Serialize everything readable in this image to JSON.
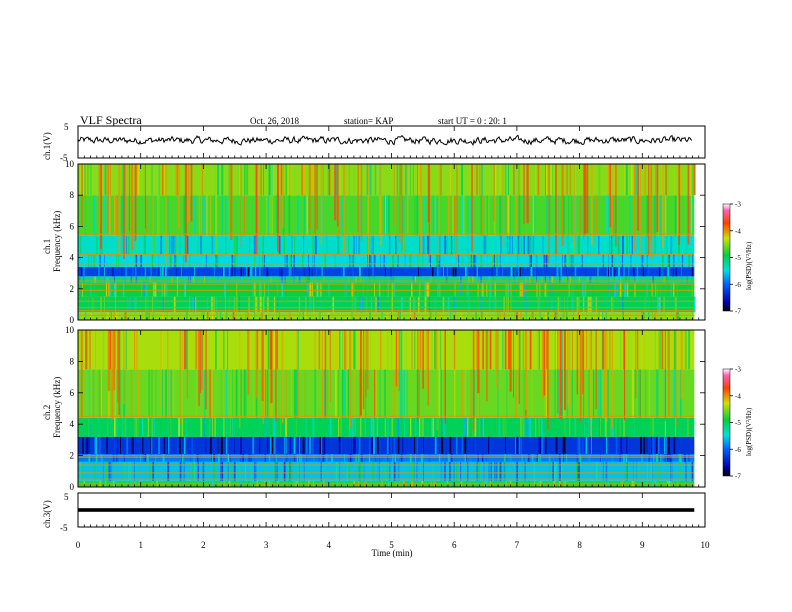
{
  "header": {
    "title": "VLF Spectra",
    "date": "Oct. 26, 2018",
    "station": "station= KAP",
    "start": "start  UT =  0 : 20: 1"
  },
  "chart_data": [
    {
      "type": "line",
      "panel": "ch1-waveform",
      "ylabel": "ch.1(V)",
      "ylim": [
        -5,
        5
      ],
      "yticks": [
        "5",
        "-5"
      ],
      "xlim": [
        0,
        10
      ],
      "series": [
        {
          "name": "",
          "shape": "noisy",
          "mean": 0.5,
          "amplitude": 2.0
        }
      ]
    },
    {
      "type": "heatmap",
      "panel": "ch1-spectrogram",
      "ylabel_top": "ch.1",
      "ylabel_bottom": "Frequency (kHz)",
      "ylim": [
        0,
        10
      ],
      "yticks": [
        "0",
        "2",
        "4",
        "6",
        "8",
        "10"
      ],
      "xlim": [
        0,
        9.83
      ],
      "colorbar": {
        "label": "log(PSD)(V²/Hz)",
        "ticks": [
          "-3",
          "-4",
          "-5",
          "-6",
          "-7"
        ],
        "range": [
          -7,
          -3
        ]
      },
      "bands": [
        {
          "from": 0.0,
          "to": 0.5,
          "level": -4.5
        },
        {
          "from": 0.5,
          "to": 1.5,
          "level": -5.0
        },
        {
          "from": 1.5,
          "to": 2.4,
          "level": -4.9
        },
        {
          "from": 2.4,
          "to": 2.8,
          "level": -5.2
        },
        {
          "from": 2.8,
          "to": 3.4,
          "level": -6.2
        },
        {
          "from": 3.4,
          "to": 4.2,
          "level": -5.5
        },
        {
          "from": 4.2,
          "to": 5.4,
          "level": -5.4
        },
        {
          "from": 5.4,
          "to": 8.0,
          "level": -4.7
        },
        {
          "from": 8.0,
          "to": 10.0,
          "level": -4.5
        }
      ],
      "lines_khz": [
        0.3,
        0.6,
        0.8,
        1.2,
        1.9,
        2.3,
        2.5,
        3.6,
        4.2,
        5.5
      ]
    },
    {
      "type": "heatmap",
      "panel": "ch2-spectrogram",
      "ylabel_top": "ch.2",
      "ylabel_bottom": "Frequency (kHz)",
      "ylim": [
        0,
        10
      ],
      "yticks": [
        "0",
        "2",
        "4",
        "6",
        "8",
        "10"
      ],
      "xlim": [
        0,
        9.83
      ],
      "colorbar": {
        "label": "log(PSD)(V²/Hz)",
        "ticks": [
          "-3",
          "-4",
          "-5",
          "-6",
          "-7"
        ],
        "range": [
          -7,
          -3
        ]
      },
      "bands": [
        {
          "from": 0.0,
          "to": 0.4,
          "level": -4.8
        },
        {
          "from": 0.4,
          "to": 1.6,
          "level": -5.6
        },
        {
          "from": 1.6,
          "to": 2.1,
          "level": -5.9
        },
        {
          "from": 2.1,
          "to": 3.2,
          "level": -6.3
        },
        {
          "from": 3.2,
          "to": 4.4,
          "level": -5.0
        },
        {
          "from": 4.4,
          "to": 7.5,
          "level": -4.6
        },
        {
          "from": 7.5,
          "to": 10.0,
          "level": -4.4
        }
      ],
      "lines_khz": [
        0.2,
        0.5,
        0.9,
        1.4,
        1.9,
        2.0,
        4.5
      ]
    },
    {
      "type": "line",
      "panel": "ch3-waveform",
      "ylabel": "ch.3(V)",
      "ylim": [
        -5,
        5
      ],
      "yticks": [
        "5",
        "-5"
      ],
      "xlim": [
        0,
        9.83
      ],
      "series": [
        {
          "name": "",
          "shape": "flat",
          "value": 0.0
        }
      ]
    }
  ],
  "x_axis": {
    "label": "Time (min)",
    "ticks": [
      "0",
      "1",
      "2",
      "3",
      "4",
      "5",
      "6",
      "7",
      "8",
      "9",
      "10"
    ],
    "range": [
      0,
      10
    ]
  }
}
